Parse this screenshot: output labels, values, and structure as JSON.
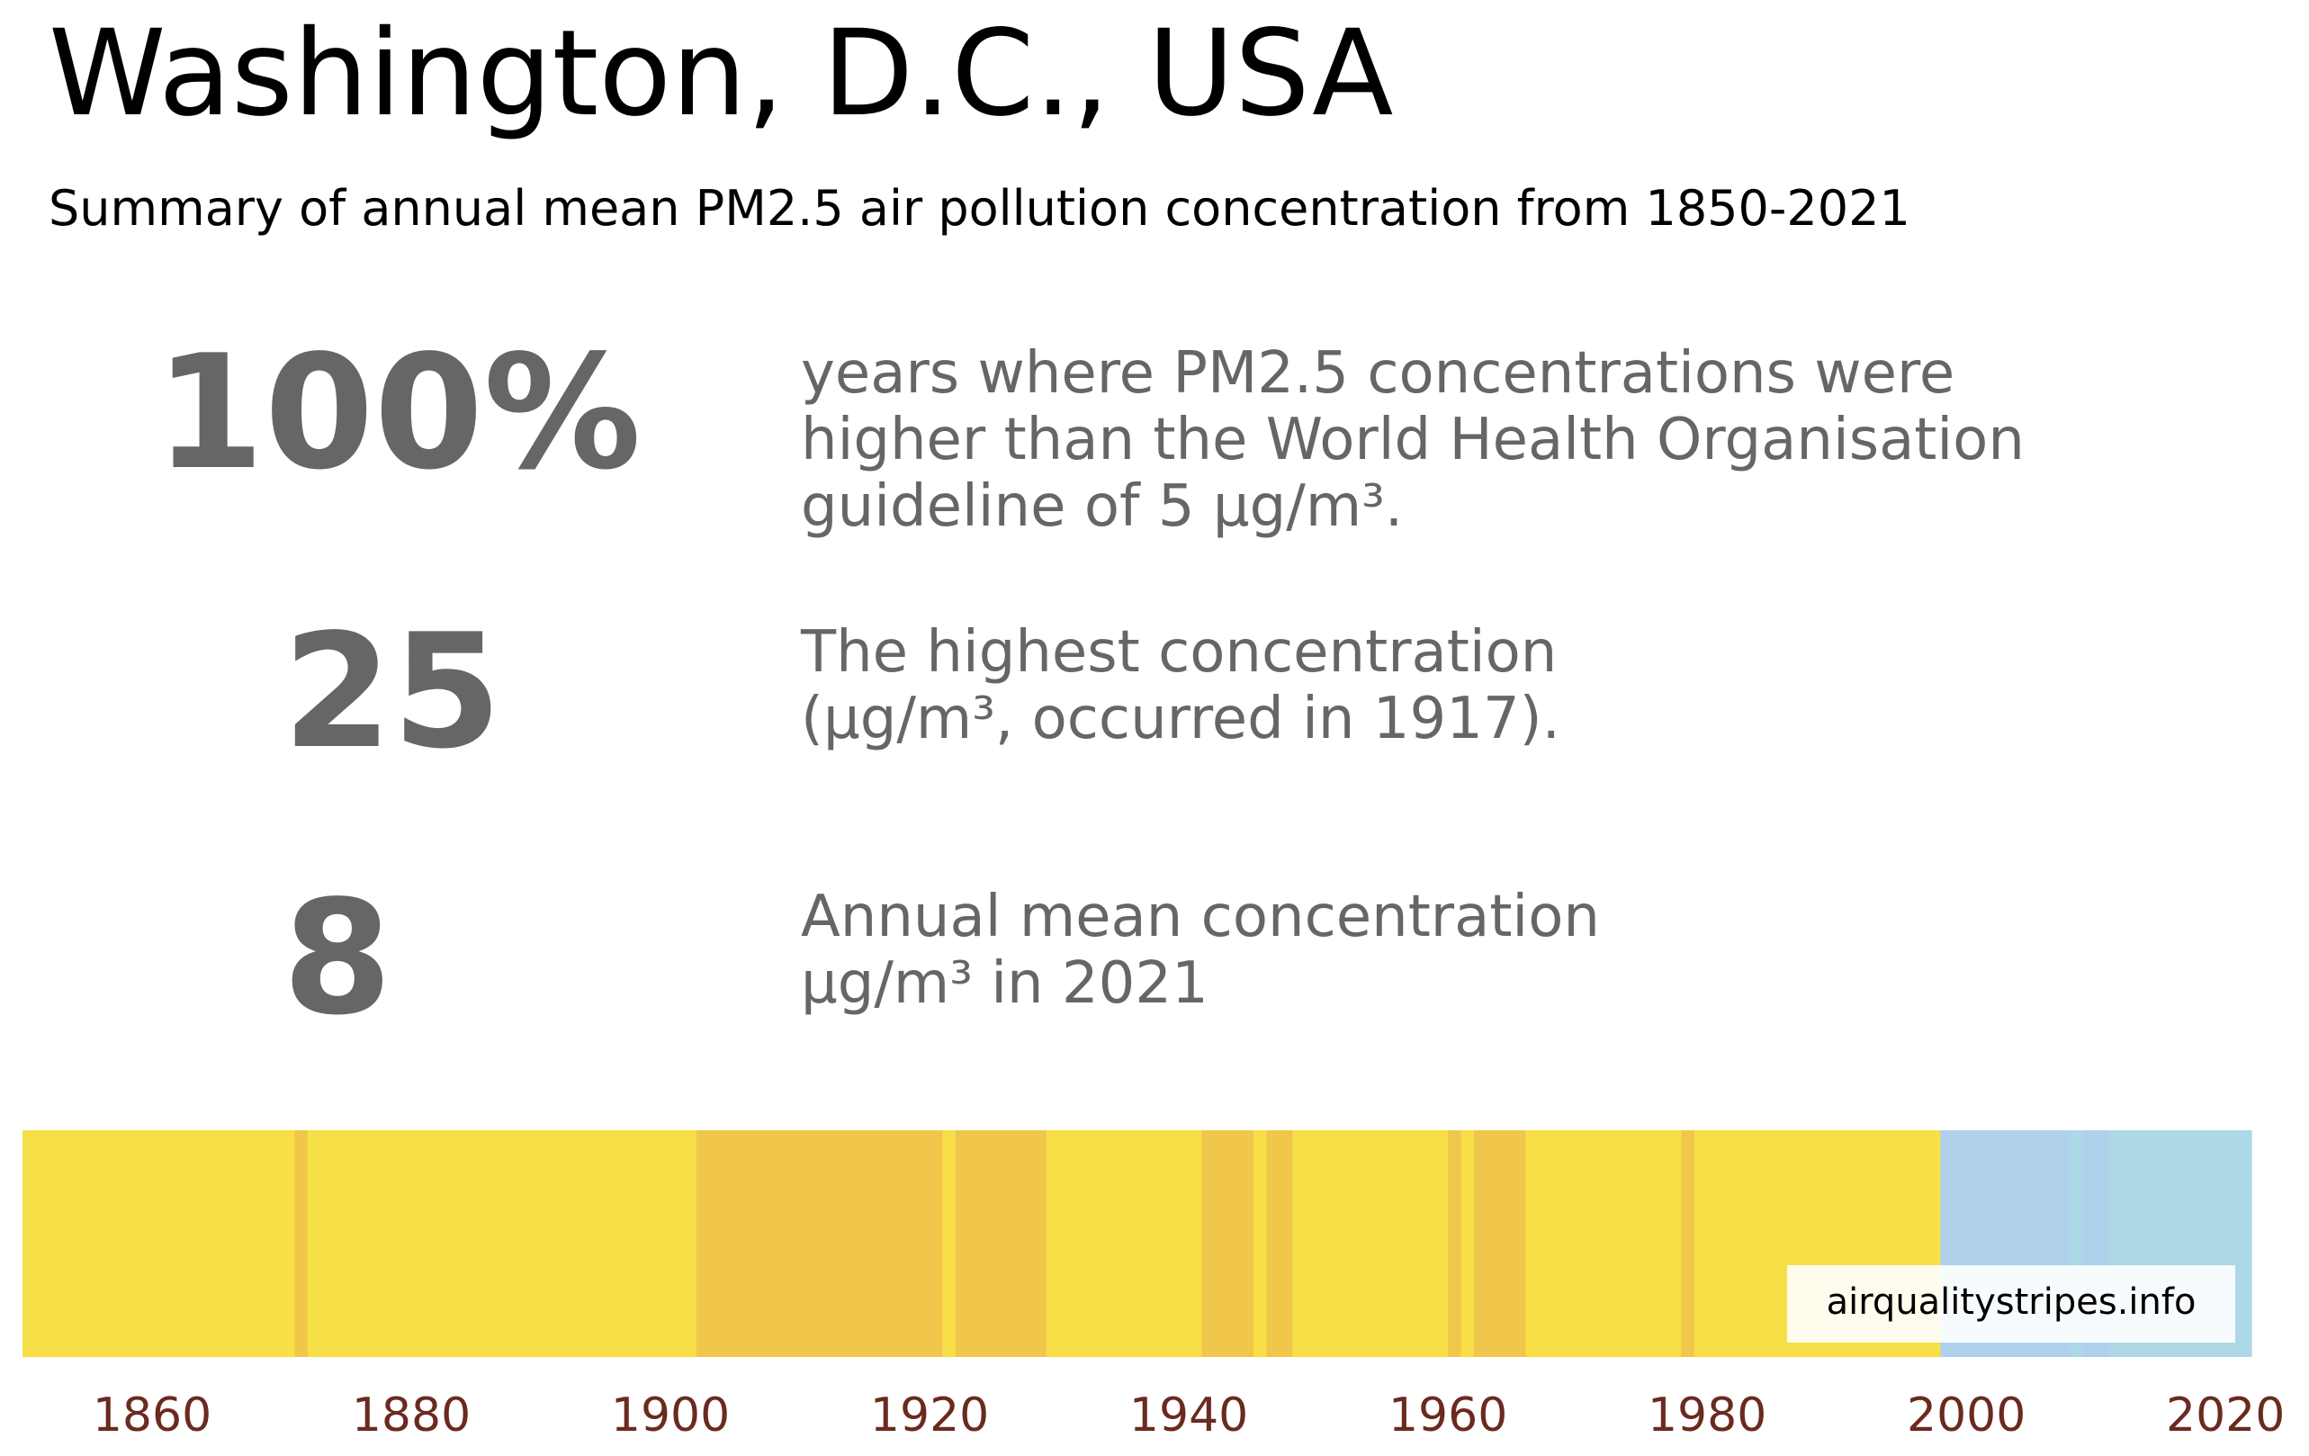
{
  "header": {
    "title": "Washington, D.C., USA",
    "subtitle": "Summary of annual mean PM2.5 air pollution concentration from 1850-2021"
  },
  "stats": [
    {
      "value": "100%",
      "description_lines": [
        "years where PM2.5 concentrations were",
        "higher than the World Health Organisation",
        "guideline of 5 µg/m³."
      ]
    },
    {
      "value": "25",
      "description_lines": [
        "The highest concentration",
        "(µg/m³, occurred in 1917)."
      ]
    },
    {
      "value": "8",
      "description_lines": [
        "Annual mean concentration",
        "µg/m³ in 2021"
      ]
    }
  ],
  "watermark": "airqualitystripes.info",
  "colors": {
    "stat_grey": "#666666",
    "tick_label": "#6b2a1f",
    "yellow": "#f7df47",
    "gold": "#f1c74b",
    "light_blue": "#afd1ec",
    "pale_blue": "#add8e6"
  },
  "chart_data": {
    "type": "heatmap",
    "description": "Annual PM2.5 'stripes', one stripe per year, colour by concentration band",
    "x_range": [
      1850,
      2021
    ],
    "x_ticks": [
      1860,
      1880,
      1900,
      1920,
      1940,
      1960,
      1980,
      2000,
      2020
    ],
    "stripe_segments": [
      {
        "start": 1850,
        "end": 1871,
        "color": "#f7df47"
      },
      {
        "start": 1871,
        "end": 1872,
        "color": "#f1c74b"
      },
      {
        "start": 1872,
        "end": 1902,
        "color": "#f7df47"
      },
      {
        "start": 1902,
        "end": 1921,
        "color": "#f1c74b"
      },
      {
        "start": 1921,
        "end": 1922,
        "color": "#f7df47"
      },
      {
        "start": 1922,
        "end": 1929,
        "color": "#f1c74b"
      },
      {
        "start": 1929,
        "end": 1941,
        "color": "#f7df47"
      },
      {
        "start": 1941,
        "end": 1945,
        "color": "#f1c74b"
      },
      {
        "start": 1945,
        "end": 1946,
        "color": "#f7df47"
      },
      {
        "start": 1946,
        "end": 1948,
        "color": "#f1c74b"
      },
      {
        "start": 1948,
        "end": 1960,
        "color": "#f7df47"
      },
      {
        "start": 1960,
        "end": 1961,
        "color": "#f1c74b"
      },
      {
        "start": 1961,
        "end": 1962,
        "color": "#f7df47"
      },
      {
        "start": 1962,
        "end": 1966,
        "color": "#f1c74b"
      },
      {
        "start": 1966,
        "end": 1978,
        "color": "#f7df47"
      },
      {
        "start": 1978,
        "end": 1979,
        "color": "#f1c74b"
      },
      {
        "start": 1979,
        "end": 1998,
        "color": "#f7df47"
      },
      {
        "start": 1998,
        "end": 2008,
        "color": "#afd1ec"
      },
      {
        "start": 2008,
        "end": 2009,
        "color": "#add8e6"
      },
      {
        "start": 2009,
        "end": 2011,
        "color": "#afd1ec"
      },
      {
        "start": 2011,
        "end": 2022,
        "color": "#add8e6"
      }
    ]
  }
}
